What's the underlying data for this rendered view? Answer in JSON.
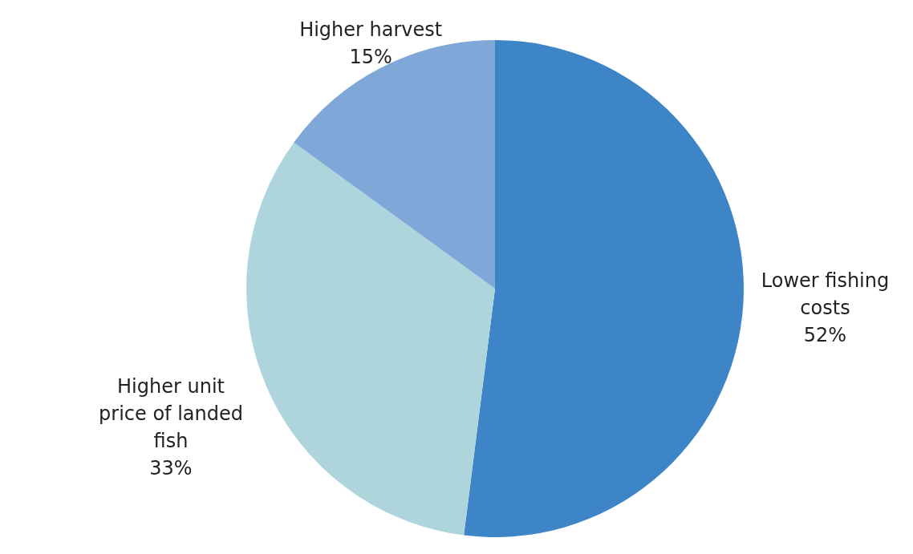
{
  "chart_data": {
    "type": "pie",
    "categories": [
      "Lower fishing costs",
      "Higher unit price of landed fish",
      "Higher harvest"
    ],
    "values": [
      52,
      33,
      15
    ],
    "value_labels": [
      "52%",
      "33%",
      "15%"
    ],
    "colors": [
      "#3d85c6",
      "#afd5dc",
      "#7fa7d8"
    ],
    "legend": false
  }
}
